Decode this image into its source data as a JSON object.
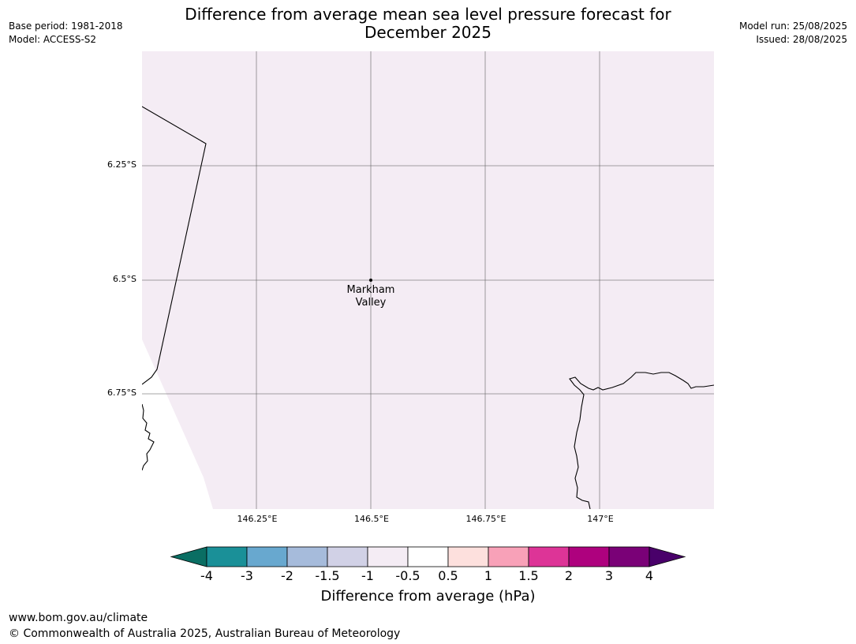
{
  "header": {
    "title_line1": "Difference from average mean sea level pressure forecast for",
    "title_line2": "December 2025",
    "base_period": "Base period: 1981-2018",
    "model": "Model: ACCESS-S2",
    "model_run": "Model run: 25/08/2025",
    "issued": "Issued: 28/08/2025"
  },
  "map": {
    "fill_color": "#f4ecf4",
    "latitude_labels": [
      "6.25°S",
      "6.5°S",
      "6.75°S"
    ],
    "longitude_labels": [
      "146.25°E",
      "146.5°E",
      "146.75°E",
      "147°E"
    ],
    "place": {
      "line1": "Markham",
      "line2": "Valley"
    }
  },
  "colorbar": {
    "ticks": [
      "-4",
      "-3",
      "-2",
      "-1.5",
      "-1",
      "-0.5",
      "0.5",
      "1",
      "1.5",
      "2",
      "3",
      "4"
    ],
    "colors": [
      "#0a6e63",
      "#1a9098",
      "#68a8cf",
      "#a6bbdb",
      "#d1d1e6",
      "#f4ecf4",
      "#ffffff",
      "#fde0dd",
      "#f8a1b8",
      "#dd3497",
      "#ae017e",
      "#7a0177",
      "#49006a"
    ],
    "label": "Difference from average (hPa)"
  },
  "footer": {
    "url": "www.bom.gov.au/climate",
    "copyright": "© Commonwealth of Australia 2025, Australian Bureau of Meteorology"
  }
}
